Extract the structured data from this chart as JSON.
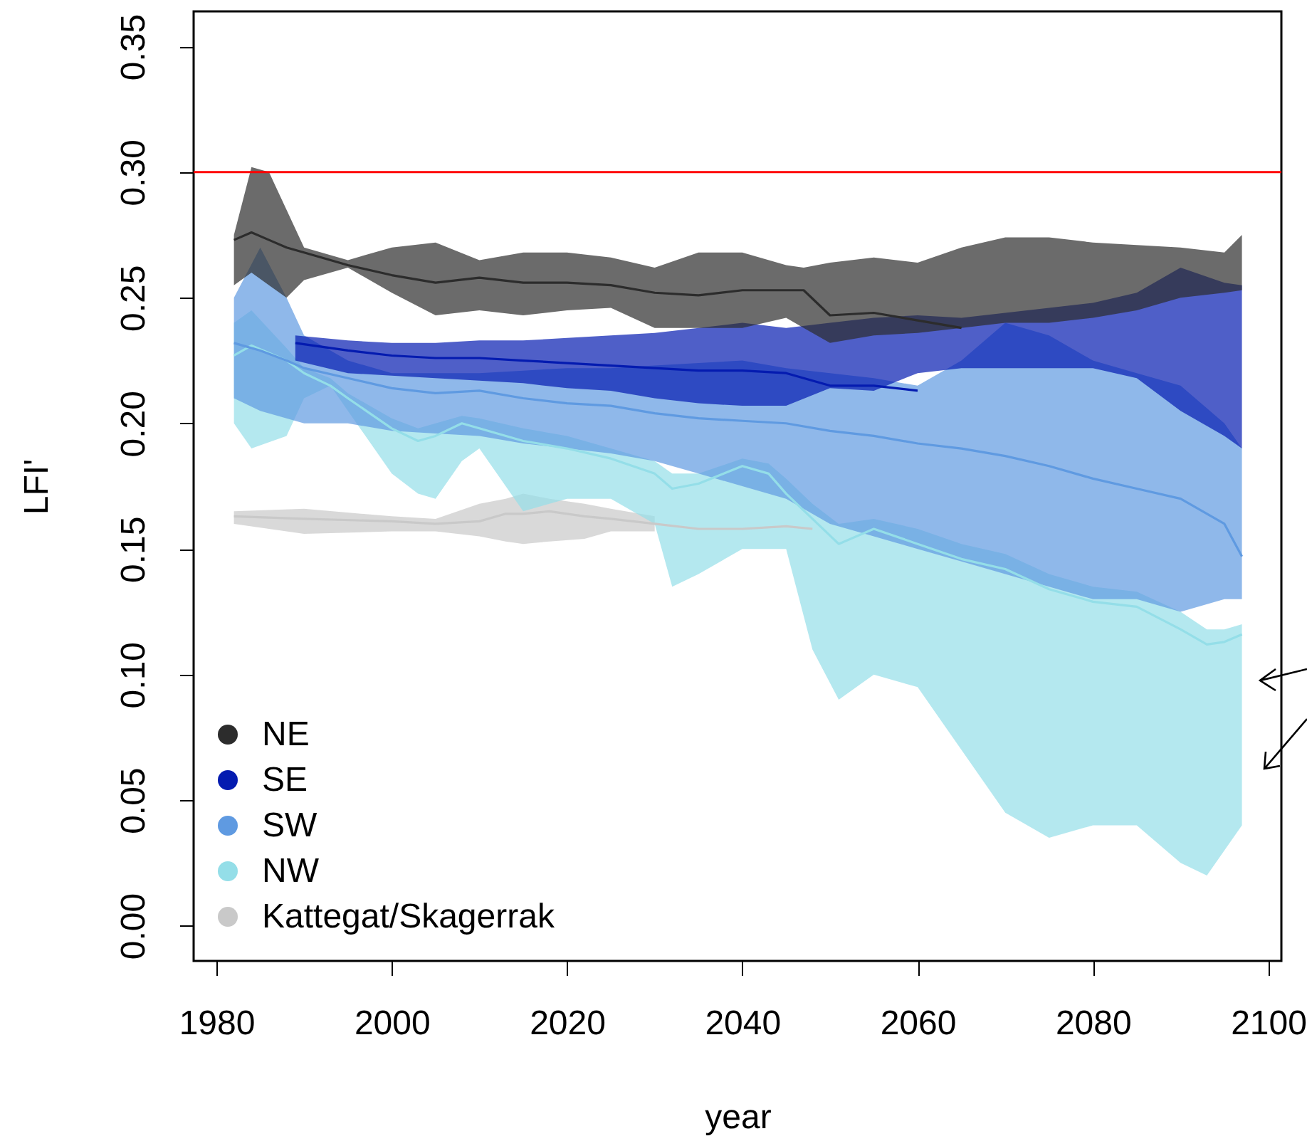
{
  "chart_data": {
    "type": "line",
    "xlabel": "year",
    "ylabel": "LFI'",
    "xlim": [
      1977.4,
      2101.5
    ],
    "ylim": [
      -0.014,
      0.364
    ],
    "xticks": [
      1980,
      2000,
      2020,
      2040,
      2060,
      2080,
      2100
    ],
    "yticks": [
      {
        "value": 0,
        "label": "0.00"
      },
      {
        "value": 0.05,
        "label": "0.05"
      },
      {
        "value": 0.1,
        "label": "0.10"
      },
      {
        "value": 0.15,
        "label": "0.15"
      },
      {
        "value": 0.2,
        "label": "0.20"
      },
      {
        "value": 0.25,
        "label": "0.25"
      },
      {
        "value": 0.3,
        "label": "0.30"
      },
      {
        "value": 0.35,
        "label": "0.35"
      }
    ],
    "legend": "bottom left",
    "ref_lines": [
      {
        "axis": "y",
        "value": 0.3,
        "color": "#ff0000"
      }
    ],
    "series": [
      {
        "name": "NE",
        "color": "#2c2c2c",
        "x": [
          1982,
          1984,
          1986,
          1988,
          1990,
          1995,
          2000,
          2005,
          2010,
          2015,
          2020,
          2025,
          2030,
          2035,
          2040,
          2045,
          2047,
          2050,
          2055,
          2060,
          2065,
          2070,
          2075,
          2080,
          2085,
          2090,
          2095,
          2097
        ],
        "values": [
          0.273,
          0.276,
          0.273,
          0.27,
          0.268,
          0.263,
          0.259,
          0.256,
          0.258,
          0.256,
          0.256,
          0.255,
          0.252,
          0.251,
          0.253,
          0.253,
          0.253,
          0.243,
          0.244,
          0.241,
          0.238,
          null,
          null,
          null,
          null,
          null,
          null,
          null
        ],
        "upper": [
          0.275,
          0.302,
          0.3,
          0.285,
          0.27,
          0.265,
          0.27,
          0.272,
          0.265,
          0.268,
          0.268,
          0.266,
          0.262,
          0.268,
          0.268,
          0.263,
          0.262,
          0.264,
          0.266,
          0.264,
          0.27,
          0.274,
          0.274,
          0.272,
          0.271,
          0.27,
          0.268,
          0.275
        ],
        "lower": [
          0.255,
          0.26,
          0.255,
          0.25,
          0.257,
          0.262,
          0.252,
          0.243,
          0.245,
          0.243,
          0.245,
          0.246,
          0.238,
          0.238,
          0.238,
          0.242,
          0.238,
          0.232,
          0.235,
          0.236,
          0.238,
          0.24,
          0.24,
          0.242,
          0.245,
          0.25,
          0.252,
          0.253
        ]
      },
      {
        "name": "SE",
        "color": "#041bb0",
        "x": [
          1989,
          1995,
          2000,
          2005,
          2010,
          2015,
          2020,
          2025,
          2030,
          2035,
          2040,
          2045,
          2050,
          2055,
          2060,
          2065,
          2070,
          2075,
          2080,
          2085,
          2090,
          2095,
          2097
        ],
        "values": [
          0.232,
          0.229,
          0.227,
          0.226,
          0.226,
          0.225,
          0.224,
          0.223,
          0.222,
          0.221,
          0.221,
          0.22,
          0.215,
          0.215,
          0.213,
          null,
          null,
          null,
          null,
          null,
          null,
          null,
          null
        ],
        "upper": [
          0.235,
          0.233,
          0.232,
          0.232,
          0.233,
          0.233,
          0.234,
          0.235,
          0.236,
          0.238,
          0.24,
          0.238,
          0.24,
          0.242,
          0.243,
          0.242,
          0.244,
          0.246,
          0.248,
          0.252,
          0.262,
          0.256,
          0.255
        ],
        "lower": [
          0.225,
          0.22,
          0.219,
          0.218,
          0.217,
          0.216,
          0.214,
          0.213,
          0.21,
          0.208,
          0.207,
          0.207,
          0.214,
          0.213,
          0.22,
          0.222,
          0.222,
          0.222,
          0.222,
          0.218,
          0.205,
          0.195,
          0.19
        ]
      },
      {
        "name": "SW",
        "color": "#5f9ae1",
        "x": [
          1982,
          1985,
          1988,
          1990,
          1995,
          2000,
          2005,
          2010,
          2015,
          2020,
          2025,
          2030,
          2035,
          2040,
          2045,
          2050,
          2055,
          2060,
          2065,
          2070,
          2075,
          2080,
          2085,
          2090,
          2095,
          2097
        ],
        "values": [
          0.232,
          0.229,
          0.225,
          0.222,
          0.218,
          0.214,
          0.212,
          0.213,
          0.21,
          0.208,
          0.207,
          0.204,
          0.202,
          0.201,
          0.2,
          0.197,
          0.195,
          0.192,
          0.19,
          0.187,
          0.183,
          0.178,
          0.174,
          0.17,
          0.16,
          0.147
        ],
        "upper": [
          0.25,
          0.27,
          0.25,
          0.235,
          0.225,
          0.22,
          0.22,
          0.22,
          0.221,
          0.222,
          0.222,
          0.223,
          0.224,
          0.225,
          0.222,
          0.22,
          0.218,
          0.215,
          0.225,
          0.24,
          0.235,
          0.225,
          0.22,
          0.215,
          0.2,
          0.19
        ],
        "lower": [
          0.21,
          0.205,
          0.202,
          0.2,
          0.2,
          0.197,
          0.196,
          0.195,
          0.192,
          0.19,
          0.188,
          0.185,
          0.18,
          0.175,
          0.17,
          0.16,
          0.155,
          0.15,
          0.145,
          0.14,
          0.135,
          0.13,
          0.13,
          0.125,
          0.13,
          0.13
        ]
      },
      {
        "name": "NW",
        "color": "#94dee8",
        "x": [
          1982,
          1984,
          1988,
          1990,
          1993,
          1995,
          2000,
          2003,
          2005,
          2008,
          2010,
          2015,
          2020,
          2025,
          2030,
          2032,
          2035,
          2040,
          2043,
          2045,
          2048,
          2051,
          2055,
          2060,
          2065,
          2070,
          2075,
          2080,
          2085,
          2090,
          2093,
          2095,
          2097
        ],
        "values": [
          0.227,
          0.231,
          0.225,
          0.22,
          0.215,
          0.21,
          0.198,
          0.193,
          0.195,
          0.2,
          0.198,
          0.193,
          0.19,
          0.186,
          0.18,
          0.174,
          0.176,
          0.183,
          0.18,
          0.172,
          0.162,
          0.152,
          0.158,
          0.152,
          0.146,
          0.142,
          0.134,
          0.129,
          0.127,
          0.118,
          0.112,
          0.113,
          0.116
        ],
        "upper": [
          0.24,
          0.245,
          0.23,
          0.222,
          0.218,
          0.212,
          0.202,
          0.198,
          0.2,
          0.203,
          0.202,
          0.198,
          0.195,
          0.19,
          0.185,
          0.18,
          0.18,
          0.186,
          0.184,
          0.178,
          0.168,
          0.16,
          0.162,
          0.158,
          0.152,
          0.148,
          0.14,
          0.135,
          0.133,
          0.125,
          0.118,
          0.118,
          0.12
        ],
        "lower": [
          0.2,
          0.19,
          0.195,
          0.21,
          0.215,
          0.205,
          0.18,
          0.172,
          0.17,
          0.185,
          0.19,
          0.165,
          0.17,
          0.17,
          0.16,
          0.135,
          0.14,
          0.15,
          0.15,
          0.15,
          0.11,
          0.09,
          0.1,
          0.095,
          0.07,
          0.045,
          0.035,
          0.04,
          0.04,
          0.025,
          0.02,
          0.03,
          0.04
        ]
      },
      {
        "name": "Kattegat/Skagerrak",
        "color": "#c9c9c9",
        "x": [
          1982,
          1990,
          2000,
          2005,
          2010,
          2013,
          2015,
          2018,
          2022,
          2025,
          2030,
          2035,
          2040,
          2045,
          2048
        ],
        "values": [
          0.163,
          0.162,
          0.161,
          0.16,
          0.161,
          0.164,
          0.164,
          0.165,
          0.163,
          0.162,
          0.16,
          0.158,
          0.158,
          0.159,
          0.158
        ],
        "upper": [
          0.165,
          0.166,
          0.163,
          0.162,
          0.168,
          0.17,
          0.172,
          0.17,
          0.168,
          0.166,
          0.163,
          null,
          null,
          null,
          null
        ],
        "lower": [
          0.16,
          0.156,
          0.157,
          0.157,
          0.155,
          0.153,
          0.152,
          0.153,
          0.154,
          0.157,
          0.157,
          null,
          null,
          null,
          null
        ]
      }
    ]
  }
}
